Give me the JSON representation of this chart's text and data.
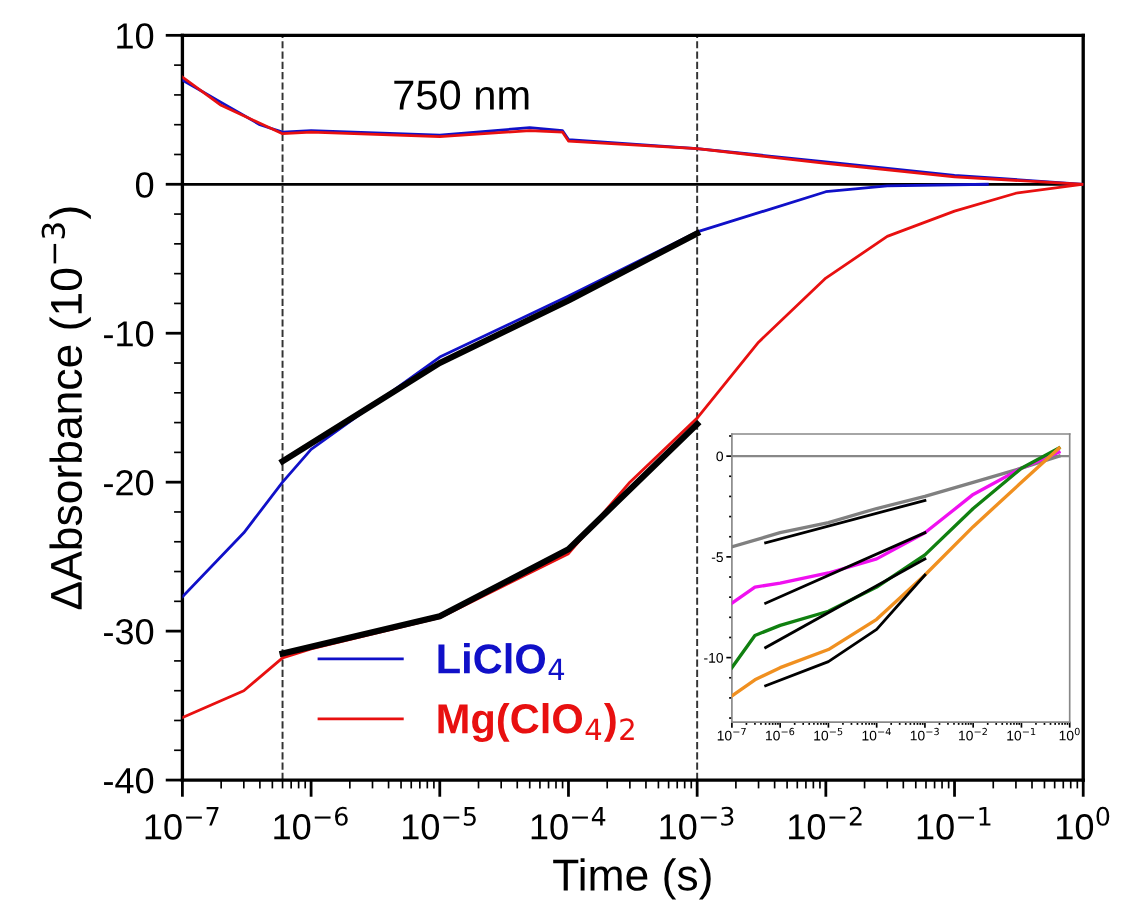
{
  "chart_data": [
    {
      "type": "line",
      "xlabel": "Time (s)",
      "ylabel": "ΔAbsorbance (10$^{−3}$)",
      "log": "x",
      "xlim": [
        1e-07,
        1
      ],
      "ylim": [
        -40,
        10
      ],
      "xticks": [
        {
          "value": 1e-07,
          "label": "10$^{−7}$"
        },
        {
          "value": 1e-06,
          "label": "10$^{−6}$"
        },
        {
          "value": 1e-05,
          "label": "10$^{−5}$"
        },
        {
          "value": 0.0001,
          "label": "10$^{−4}$"
        },
        {
          "value": 0.001,
          "label": "10$^{−3}$"
        },
        {
          "value": 0.01,
          "label": "10$^{−2}$"
        },
        {
          "value": 0.1,
          "label": "10$^{−1}$"
        },
        {
          "value": 1,
          "label": "10$^{0}$"
        }
      ],
      "yticks": [
        10,
        0,
        -10,
        -20,
        -30,
        -40
      ],
      "grid": false,
      "legend": "bottom left",
      "marker": "none",
      "line_style": "solid",
      "annotations": [
        "750 nm"
      ],
      "ref_lines": [
        {
          "axis": "y",
          "value": 0,
          "color": "#000000",
          "line_style": "solid"
        },
        {
          "axis": "x",
          "value": 6e-07,
          "color": "#333333",
          "line_style": "dashed"
        },
        {
          "axis": "x",
          "value": 0.001,
          "color": "#333333",
          "line_style": "dashed"
        }
      ],
      "series": [
        {
          "color": "#1010c8",
          "x": [
            1e-07,
            2e-07,
            4e-07,
            6e-07,
            1e-06,
            1e-05,
            5e-05,
            9e-05,
            0.0001,
            0.001,
            0.01,
            0.1,
            1
          ],
          "values": [
            7,
            5.5,
            4,
            3.5,
            3.6,
            3.3,
            3.8,
            3.6,
            3.0,
            2.4,
            1.5,
            0.6,
            0
          ]
        },
        {
          "color": "#e81010",
          "x": [
            1e-07,
            2e-07,
            4e-07,
            6e-07,
            1e-06,
            1e-05,
            5e-05,
            9e-05,
            0.0001,
            0.001,
            0.01,
            0.1,
            1
          ],
          "values": [
            7.2,
            5.3,
            4.1,
            3.4,
            3.5,
            3.2,
            3.6,
            3.5,
            2.9,
            2.4,
            1.4,
            0.5,
            0
          ]
        },
        {
          "name": "LiClO$_{4}$",
          "color": "#1010c8",
          "x": [
            1e-07,
            3e-07,
            6e-07,
            1e-06,
            1e-05,
            0.0001,
            0.001,
            0.01,
            0.03,
            0.18
          ],
          "values": [
            -27.7,
            -23.4,
            -20,
            -17.8,
            -11.6,
            -7.5,
            -3.2,
            -0.5,
            -0.1,
            0
          ]
        },
        {
          "name": "Mg(ClO$_{4}$)$_{2}$",
          "color": "#e81010",
          "x": [
            1e-07,
            3e-07,
            6e-07,
            1e-06,
            1e-05,
            0.0001,
            0.0003,
            0.001,
            0.003,
            0.01,
            0.03,
            0.1,
            0.3,
            1
          ],
          "values": [
            -35.8,
            -34,
            -31.8,
            -31.2,
            -29.1,
            -24.8,
            -20,
            -15.7,
            -10.6,
            -6.3,
            -3.5,
            -1.8,
            -0.6,
            0
          ]
        },
        {
          "color": "#000000",
          "x": [
            6e-07,
            1e-05,
            0.0001,
            0.001
          ],
          "values": [
            -18.6,
            -12,
            -7.8,
            -3.3
          ]
        },
        {
          "color": "#000000",
          "x": [
            6e-07,
            1e-05,
            0.0001,
            0.001
          ],
          "values": [
            -31.5,
            -29,
            -24.5,
            -16.1
          ]
        }
      ]
    },
    {
      "type": "line",
      "log": "x",
      "xlim": [
        1e-07,
        1
      ],
      "ylim": [
        -13.2,
        1.1
      ],
      "xticks": [
        {
          "value": 1e-07,
          "label": "10$^{−7}$"
        },
        {
          "value": 1e-06,
          "label": "10$^{−6}$"
        },
        {
          "value": 1e-05,
          "label": "10$^{−5}$"
        },
        {
          "value": 0.0001,
          "label": "10$^{−4}$"
        },
        {
          "value": 0.001,
          "label": "10$^{−3}$"
        },
        {
          "value": 0.01,
          "label": "10$^{−2}$"
        },
        {
          "value": 0.1,
          "label": "10$^{−1}$"
        },
        {
          "value": 1,
          "label": "10$^{0}$"
        }
      ],
      "yticks": [
        0,
        -5,
        -10
      ],
      "grid": false,
      "marker": "none",
      "line_style": "solid",
      "ref_lines": [
        {
          "axis": "y",
          "value": 0,
          "color": "#888888",
          "line_style": "solid"
        }
      ],
      "series": [
        {
          "color": "#808080",
          "x": [
            1e-07,
            1e-06,
            1e-05,
            0.0001,
            0.001,
            0.01,
            0.1,
            0.6
          ],
          "values": [
            -4.5,
            -3.8,
            -3.3,
            -2.6,
            -2.0,
            -1.3,
            -0.6,
            0
          ]
        },
        {
          "color": "#f010f0",
          "x": [
            1e-07,
            3e-07,
            1e-06,
            1e-05,
            0.0001,
            0.001,
            0.003,
            0.01,
            0.1,
            0.6
          ],
          "values": [
            -7.3,
            -6.5,
            -6.3,
            -5.8,
            -5.1,
            -3.8,
            -2.9,
            -1.9,
            -0.6,
            0.2
          ]
        },
        {
          "color": "#108010",
          "x": [
            1e-07,
            3e-07,
            1e-06,
            1e-05,
            0.0001,
            0.001,
            0.01,
            0.1,
            0.6
          ],
          "values": [
            -10.5,
            -8.9,
            -8.4,
            -7.7,
            -6.5,
            -4.9,
            -2.6,
            -0.6,
            0.4
          ]
        },
        {
          "color": "#f09020",
          "x": [
            1e-07,
            3e-07,
            1e-06,
            1e-05,
            0.0001,
            0.001,
            0.01,
            0.1,
            0.6
          ],
          "values": [
            -11.9,
            -11.1,
            -10.5,
            -9.6,
            -8.1,
            -5.9,
            -3.5,
            -1.3,
            0.4
          ]
        },
        {
          "color": "#000000",
          "x": [
            5e-07,
            0.001
          ],
          "values": [
            -4.3,
            -2.2
          ]
        },
        {
          "color": "#000000",
          "x": [
            5e-07,
            0.001
          ],
          "values": [
            -7.3,
            -3.8
          ]
        },
        {
          "color": "#000000",
          "x": [
            5e-07,
            0.001
          ],
          "values": [
            -9.5,
            -5.1
          ]
        },
        {
          "color": "#000000",
          "x": [
            5e-07,
            1e-05,
            0.0001,
            0.001
          ],
          "values": [
            -11.4,
            -10.2,
            -8.6,
            -5.9
          ]
        }
      ]
    }
  ]
}
